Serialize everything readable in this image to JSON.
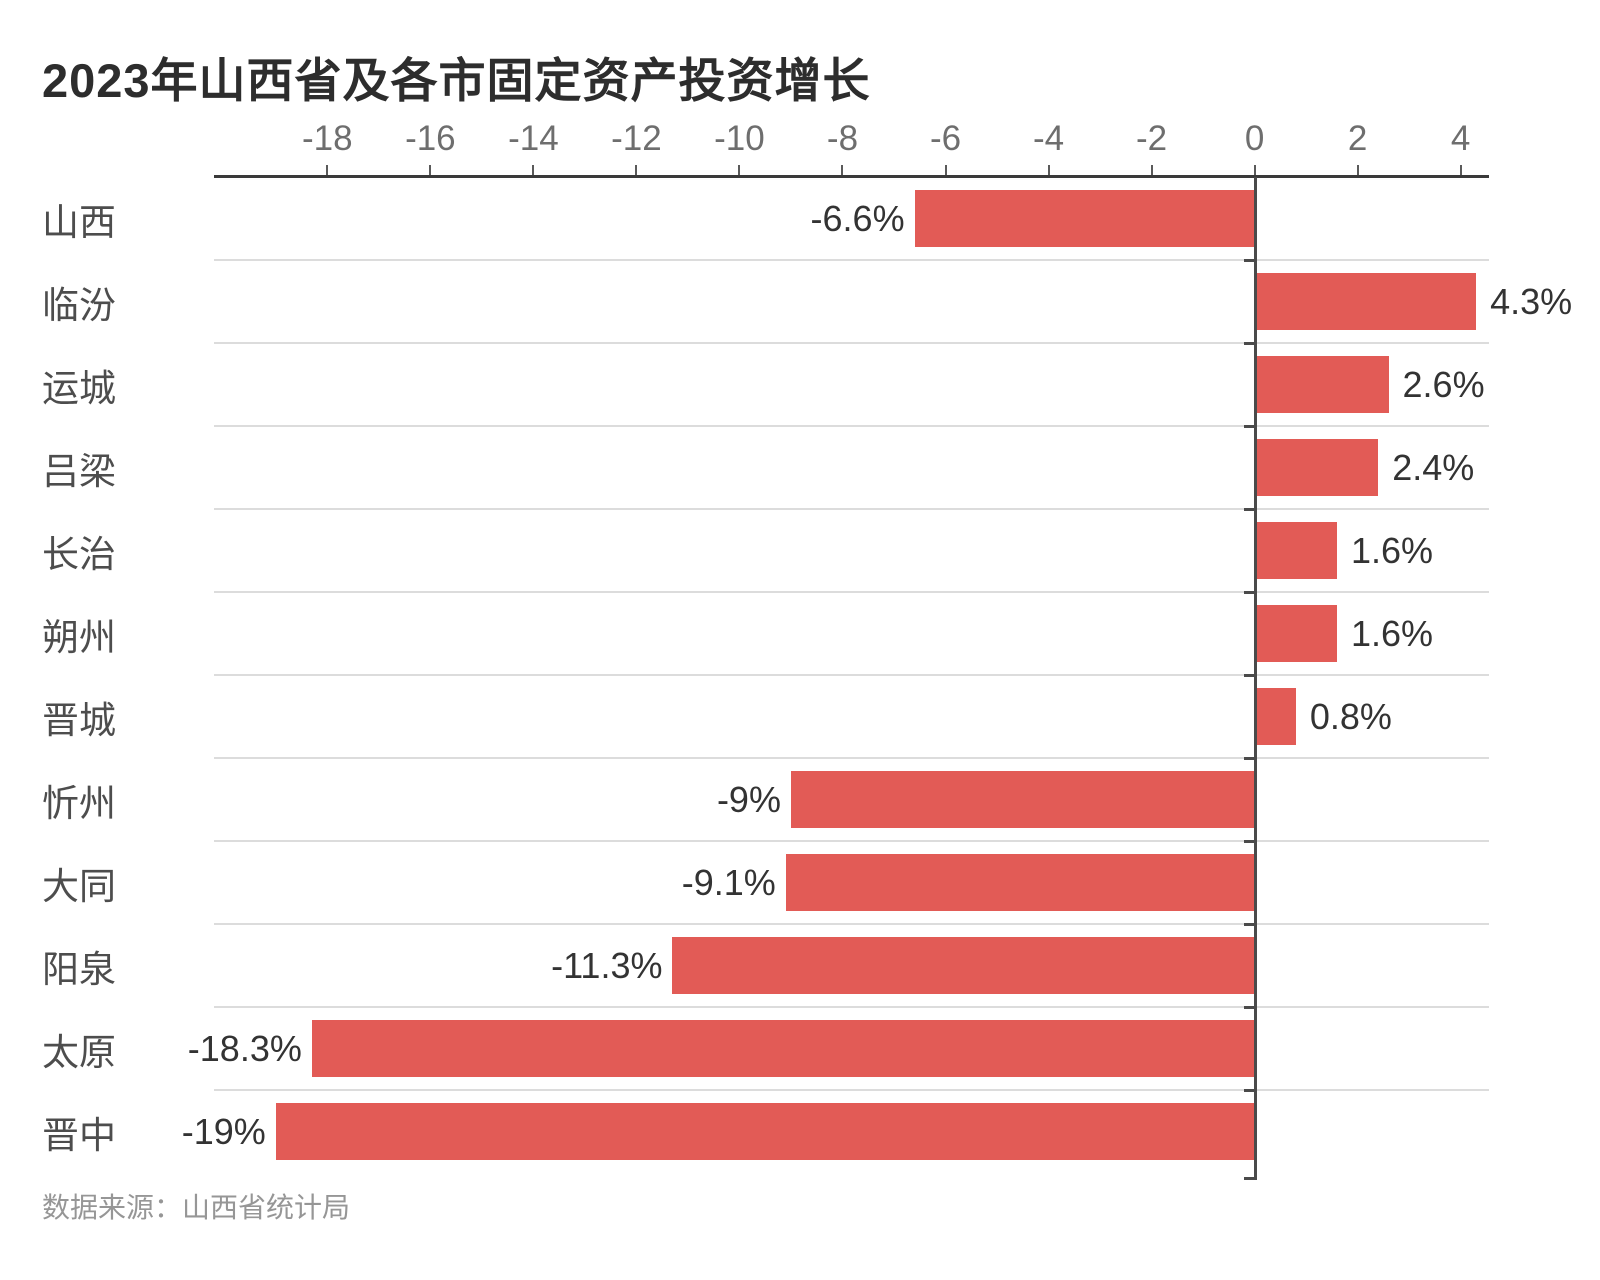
{
  "title": "2023年山西省及各市固定资产投资增长",
  "source": "数据来源：山西省统计局",
  "colors": {
    "bar": "#e25b56",
    "axis_line": "#3a3a3a",
    "zero_line": "#4a4a4a",
    "separator": "#dcdcdc",
    "title_text": "#2d2d2d",
    "category_text": "#4d4d4d",
    "tick_text": "#6e6e6e",
    "value_text": "#333333",
    "source_text": "#969696",
    "background": "#ffffff"
  },
  "chart_data": {
    "type": "bar",
    "orientation": "horizontal",
    "title": "2023年山西省及各市固定资产投资增长",
    "categories": [
      "山西",
      "临汾",
      "运城",
      "吕梁",
      "长治",
      "朔州",
      "晋城",
      "忻州",
      "大同",
      "阳泉",
      "太原",
      "晋中"
    ],
    "values": [
      -6.6,
      4.3,
      2.6,
      2.4,
      1.6,
      1.6,
      0.8,
      -9,
      -9.1,
      -11.3,
      -18.3,
      -19
    ],
    "value_labels": [
      "-6.6%",
      "4.3%",
      "2.6%",
      "2.4%",
      "1.6%",
      "1.6%",
      "0.8%",
      "-9%",
      "-9.1%",
      "-11.3%",
      "-18.3%",
      "-19%"
    ],
    "unit": "%",
    "x_ticks": [
      -18,
      -16,
      -14,
      -12,
      -10,
      -8,
      -6,
      -4,
      -2,
      0,
      2,
      4
    ],
    "xlim": [
      -20.2,
      4.55
    ],
    "xlabel": "",
    "ylabel": "",
    "grid": "row-separators",
    "legend": "none",
    "bar_color": "#e25b56"
  }
}
